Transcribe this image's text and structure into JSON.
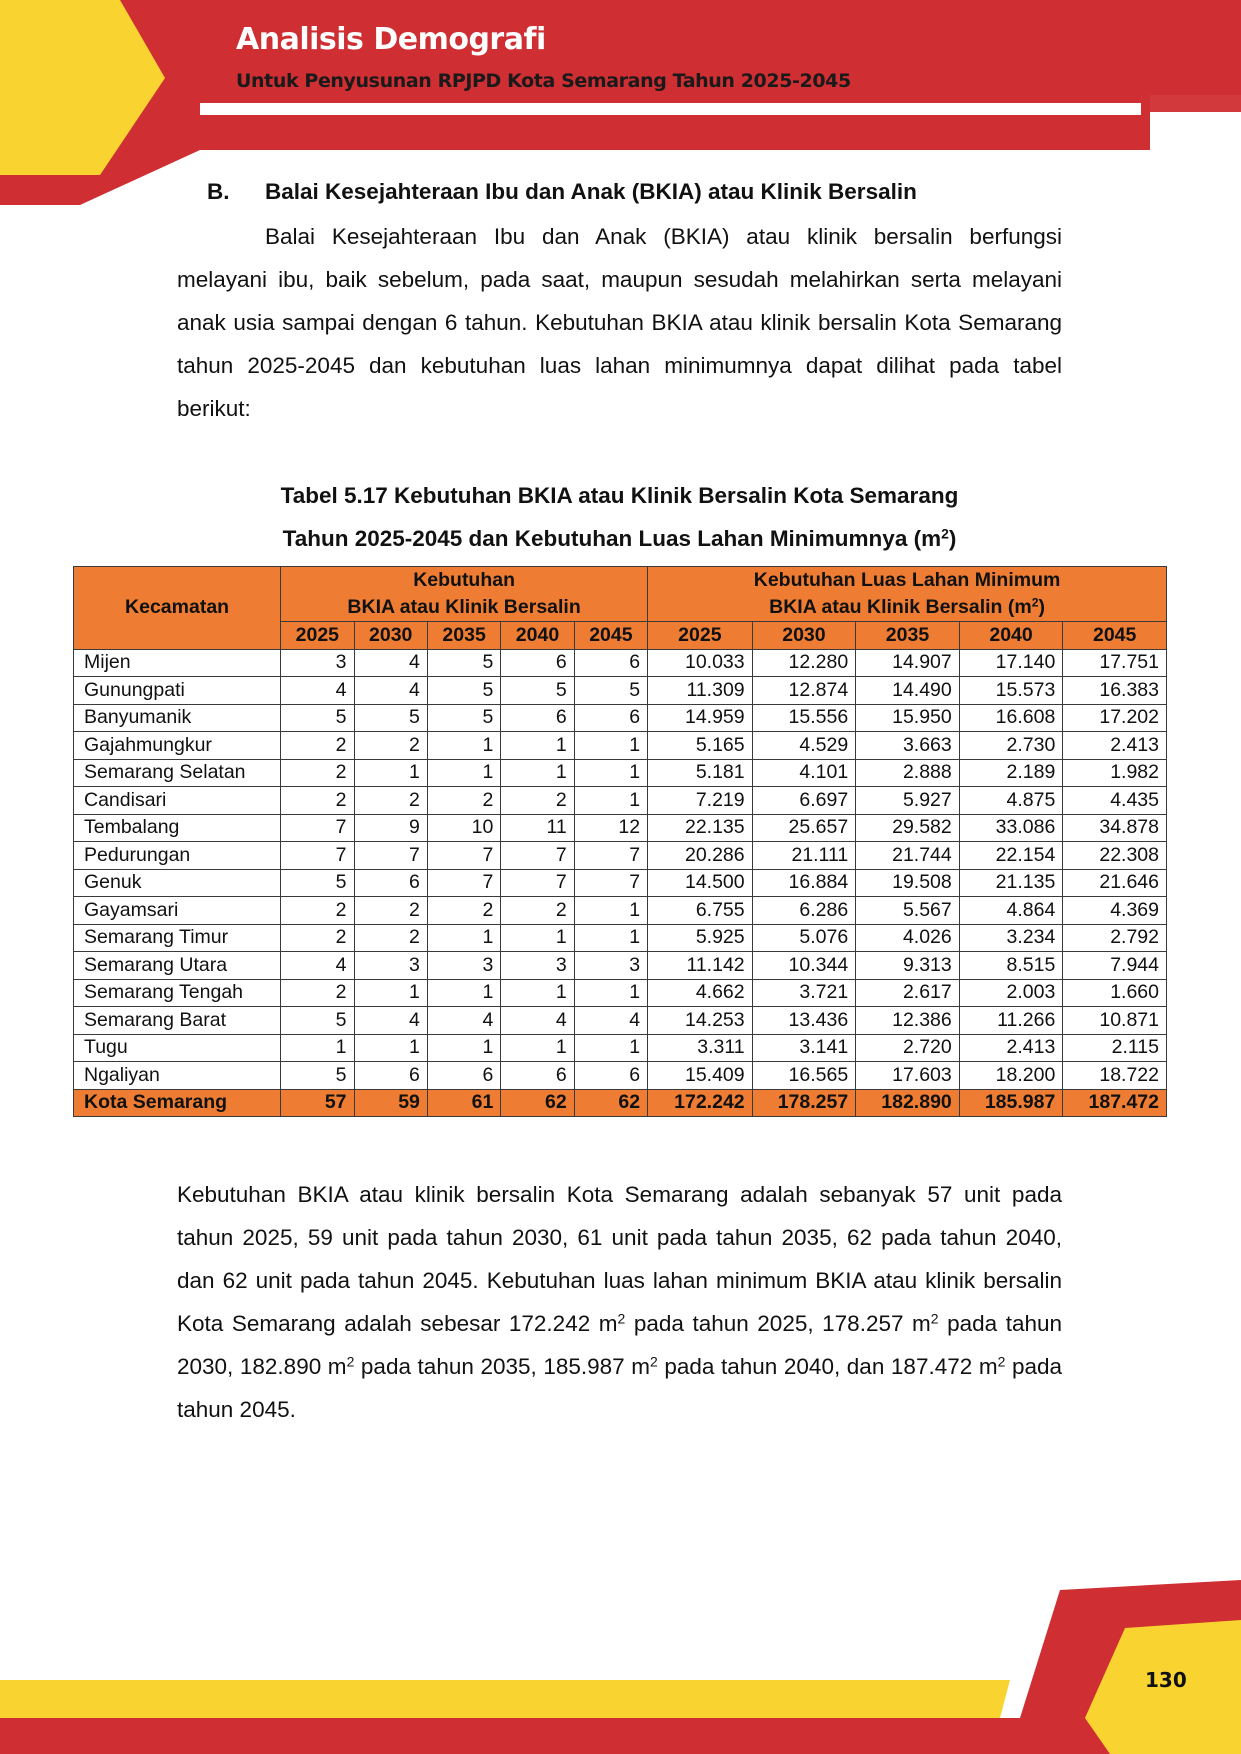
{
  "header": {
    "title": "Analisis Demografi",
    "subtitle": "Untuk Penyusunan RPJPD Kota Semarang Tahun 2025-2045"
  },
  "section": {
    "letter": "B.",
    "heading": "Balai Kesejahteraan Ibu dan Anak (BKIA) atau Klinik Bersalin"
  },
  "intro": "Balai Kesejahteraan Ibu dan Anak (BKIA) atau klinik bersalin berfungsi melayani ibu, baik sebelum, pada saat, maupun sesudah melahirkan serta melayani anak usia sampai dengan 6 tahun. Kebutuhan BKIA atau klinik bersalin Kota Semarang tahun 2025-2045 dan kebutuhan luas lahan minimumnya dapat dilihat pada tabel berikut:",
  "table": {
    "caption_line1": "Tabel 5.17 Kebutuhan BKIA atau Klinik Bersalin Kota Semarang",
    "caption_line2": "Tahun 2025-2045 dan Kebutuhan Luas Lahan Minimumnya (m",
    "caption_sup": "2",
    "caption_end": ")",
    "col_kecamatan": "Kecamatan",
    "group1_line1": "Kebutuhan",
    "group1_line2": "BKIA atau Klinik Bersalin",
    "group2_line1": "Kebutuhan Luas Lahan Minimum",
    "group2_line2": "BKIA atau Klinik Bersalin (m",
    "group2_sup": "2",
    "group2_end": ")",
    "years": [
      "2025",
      "2030",
      "2035",
      "2040",
      "2045"
    ],
    "rows": [
      {
        "name": "Mijen",
        "units": [
          "3",
          "4",
          "5",
          "6",
          "6"
        ],
        "area": [
          "10.033",
          "12.280",
          "14.907",
          "17.140",
          "17.751"
        ]
      },
      {
        "name": "Gunungpati",
        "units": [
          "4",
          "4",
          "5",
          "5",
          "5"
        ],
        "area": [
          "11.309",
          "12.874",
          "14.490",
          "15.573",
          "16.383"
        ]
      },
      {
        "name": "Banyumanik",
        "units": [
          "5",
          "5",
          "5",
          "6",
          "6"
        ],
        "area": [
          "14.959",
          "15.556",
          "15.950",
          "16.608",
          "17.202"
        ]
      },
      {
        "name": "Gajahmungkur",
        "units": [
          "2",
          "2",
          "1",
          "1",
          "1"
        ],
        "area": [
          "5.165",
          "4.529",
          "3.663",
          "2.730",
          "2.413"
        ]
      },
      {
        "name": "Semarang Selatan",
        "units": [
          "2",
          "1",
          "1",
          "1",
          "1"
        ],
        "area": [
          "5.181",
          "4.101",
          "2.888",
          "2.189",
          "1.982"
        ]
      },
      {
        "name": "Candisari",
        "units": [
          "2",
          "2",
          "2",
          "2",
          "1"
        ],
        "area": [
          "7.219",
          "6.697",
          "5.927",
          "4.875",
          "4.435"
        ]
      },
      {
        "name": "Tembalang",
        "units": [
          "7",
          "9",
          "10",
          "11",
          "12"
        ],
        "area": [
          "22.135",
          "25.657",
          "29.582",
          "33.086",
          "34.878"
        ]
      },
      {
        "name": "Pedurungan",
        "units": [
          "7",
          "7",
          "7",
          "7",
          "7"
        ],
        "area": [
          "20.286",
          "21.111",
          "21.744",
          "22.154",
          "22.308"
        ]
      },
      {
        "name": "Genuk",
        "units": [
          "5",
          "6",
          "7",
          "7",
          "7"
        ],
        "area": [
          "14.500",
          "16.884",
          "19.508",
          "21.135",
          "21.646"
        ]
      },
      {
        "name": "Gayamsari",
        "units": [
          "2",
          "2",
          "2",
          "2",
          "1"
        ],
        "area": [
          "6.755",
          "6.286",
          "5.567",
          "4.864",
          "4.369"
        ]
      },
      {
        "name": "Semarang Timur",
        "units": [
          "2",
          "2",
          "1",
          "1",
          "1"
        ],
        "area": [
          "5.925",
          "5.076",
          "4.026",
          "3.234",
          "2.792"
        ]
      },
      {
        "name": "Semarang Utara",
        "units": [
          "4",
          "3",
          "3",
          "3",
          "3"
        ],
        "area": [
          "11.142",
          "10.344",
          "9.313",
          "8.515",
          "7.944"
        ]
      },
      {
        "name": "Semarang Tengah",
        "units": [
          "2",
          "1",
          "1",
          "1",
          "1"
        ],
        "area": [
          "4.662",
          "3.721",
          "2.617",
          "2.003",
          "1.660"
        ]
      },
      {
        "name": "Semarang Barat",
        "units": [
          "5",
          "4",
          "4",
          "4",
          "4"
        ],
        "area": [
          "14.253",
          "13.436",
          "12.386",
          "11.266",
          "10.871"
        ]
      },
      {
        "name": "Tugu",
        "units": [
          "1",
          "1",
          "1",
          "1",
          "1"
        ],
        "area": [
          "3.311",
          "3.141",
          "2.720",
          "2.413",
          "2.115"
        ]
      },
      {
        "name": "Ngaliyan",
        "units": [
          "5",
          "6",
          "6",
          "6",
          "6"
        ],
        "area": [
          "15.409",
          "16.565",
          "17.603",
          "18.200",
          "18.722"
        ]
      }
    ],
    "total": {
      "name": "Kota Semarang",
      "units": [
        "57",
        "59",
        "61",
        "62",
        "62"
      ],
      "area": [
        "172.242",
        "178.257",
        "182.890",
        "185.987",
        "187.472"
      ]
    }
  },
  "conclusion": {
    "t1": "Kebutuhan BKIA atau klinik bersalin Kota Semarang adalah sebanyak 57 unit pada tahun 2025, 59 unit pada tahun 2030, 61 unit pada tahun 2035, 62 pada tahun 2040, dan 62 unit pada tahun 2045. Kebutuhan luas lahan minimum BKIA atau klinik bersalin Kota Semarang adalah sebesar 172.242 m",
    "t2": " pada tahun 2025, 178.257 m",
    "t3": " pada tahun 2030, 182.890 m",
    "t4": " pada tahun 2035, 185.987 m",
    "t5": " pada tahun 2040, dan 187.472 m",
    "t6": " pada tahun 2045.",
    "sup": "2"
  },
  "page_number": "130",
  "colors": {
    "red": "#cf2e33",
    "yellow": "#f9d431",
    "orange": "#ee7d33"
  }
}
